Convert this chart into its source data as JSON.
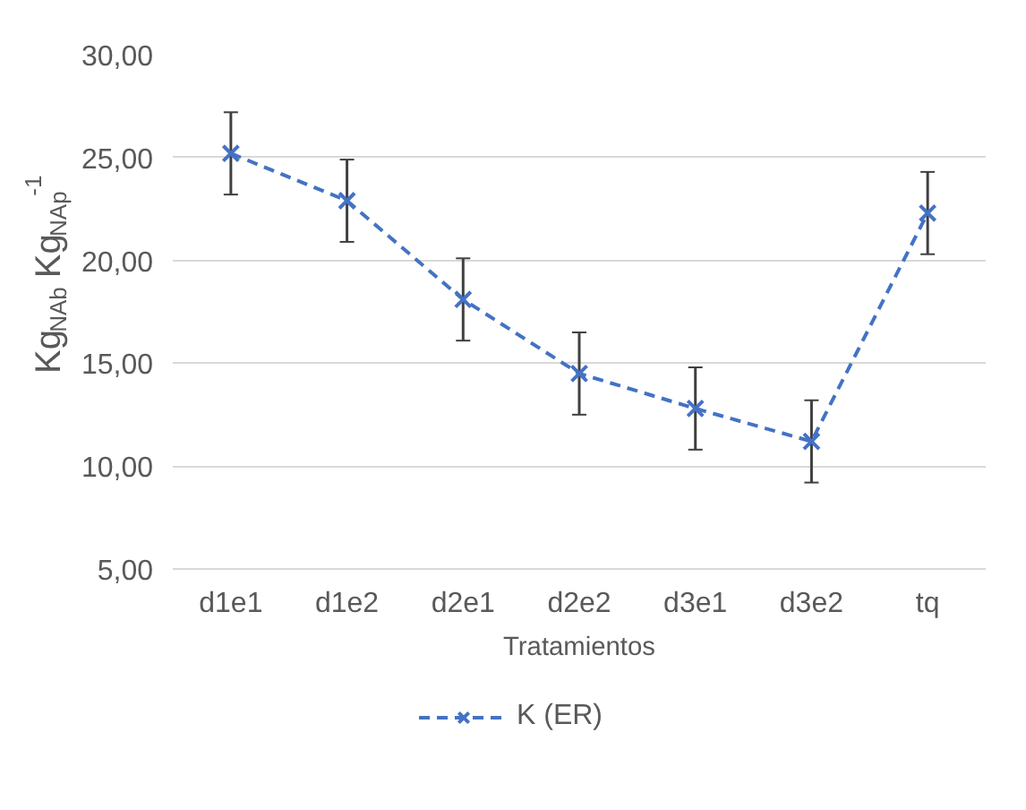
{
  "chart_data": {
    "type": "line",
    "xlabel": "Tratamientos",
    "ylabel": "Kg$_{NAb}$ Kg$_{NAp}$$^{-1}$",
    "categories": [
      "d1e1",
      "d1e2",
      "d2e1",
      "d2e2",
      "d3e1",
      "d3e2",
      "tq"
    ],
    "series": [
      {
        "name": "K (ER)",
        "color": "#4472c4",
        "values": [
          25.2,
          22.9,
          18.1,
          14.5,
          12.8,
          11.2,
          22.3
        ],
        "errors": [
          2,
          2,
          2,
          2,
          2,
          2,
          2
        ]
      }
    ],
    "ylim": [
      5,
      30
    ],
    "yticks": [
      {
        "value": 5,
        "label": "5,00"
      },
      {
        "value": 10,
        "label": "10,00"
      },
      {
        "value": 15,
        "label": "15,00"
      },
      {
        "value": 20,
        "label": "20,00"
      },
      {
        "value": 25,
        "label": "25,00"
      },
      {
        "value": 30,
        "label": "30,00"
      }
    ],
    "grid": "y",
    "legend": "bottom",
    "marker": "cross",
    "line_style": "dashed"
  }
}
